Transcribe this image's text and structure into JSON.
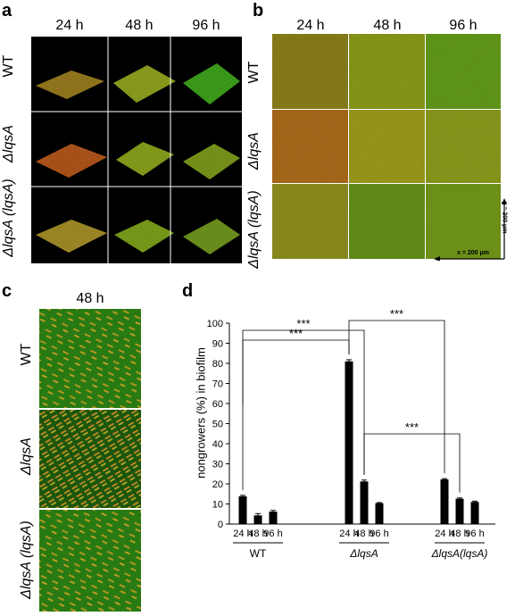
{
  "panels": {
    "a": {
      "label": "a",
      "columns": [
        "24 h",
        "48 h",
        "96 h"
      ],
      "rows": [
        "WT",
        "ΔlqsA",
        "ΔlqsA (lqsA)"
      ]
    },
    "b": {
      "label": "b",
      "columns": [
        "24 h",
        "48 h",
        "96 h"
      ],
      "rows": [
        "WT",
        "ΔlqsA",
        "ΔlqsA (lqsA)"
      ],
      "scale_x": "x = 200 μm",
      "scale_y": "y = 200 μm"
    },
    "c": {
      "label": "c",
      "column": "48 h",
      "rows": [
        "WT",
        "ΔlqsA",
        "ΔlqsA (lqsA)"
      ]
    },
    "d": {
      "label": "d"
    }
  },
  "chart_data": {
    "type": "bar",
    "ylabel": "nongrowers (%) in biofilm",
    "ylim": [
      0,
      100
    ],
    "yticks": [
      0,
      10,
      20,
      30,
      40,
      50,
      60,
      70,
      80,
      90,
      100
    ],
    "groups": [
      "WT",
      "ΔlqsA",
      "ΔlqsA(lqsA)"
    ],
    "categories": [
      "24 h",
      "48 h",
      "96 h"
    ],
    "values": [
      [
        13.8,
        4.3,
        6.2
      ],
      [
        81,
        21.2,
        10.4
      ],
      [
        22.2,
        12.6,
        11
      ]
    ],
    "errors": [
      [
        0.5,
        0.9,
        0.6
      ],
      [
        0.8,
        0.7,
        0.3
      ],
      [
        0.4,
        0.4,
        0.4
      ]
    ],
    "significance": [
      {
        "from": [
          0,
          0
        ],
        "to": [
          1,
          0
        ],
        "label": "***"
      },
      {
        "from": [
          0,
          0
        ],
        "to": [
          1,
          1
        ],
        "label": "***"
      },
      {
        "from": [
          1,
          0
        ],
        "to": [
          2,
          0
        ],
        "label": "***"
      },
      {
        "from": [
          1,
          1
        ],
        "to": [
          2,
          1
        ],
        "label": "***"
      }
    ]
  },
  "colors": {
    "bar": "#000000",
    "green": "#3f8f1c",
    "orange": "#c8641e",
    "yellow": "#b6b42a"
  }
}
